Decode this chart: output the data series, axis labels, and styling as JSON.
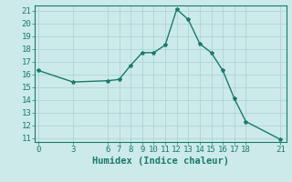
{
  "x": [
    0,
    3,
    6,
    7,
    8,
    9,
    10,
    11,
    12,
    13,
    14,
    15,
    16,
    17,
    18,
    21
  ],
  "y": [
    16.3,
    15.4,
    15.5,
    15.6,
    16.7,
    17.7,
    17.7,
    18.3,
    21.1,
    20.3,
    18.4,
    17.7,
    16.3,
    14.1,
    12.3,
    10.9
  ],
  "line_color": "#1a7a6a",
  "marker": "*",
  "marker_size": 3,
  "background_color": "#cceaea",
  "grid_color": "#aacfcf",
  "spine_color": "#1a7a6a",
  "xlabel": "Humidex (Indice chaleur)",
  "xticks": [
    0,
    3,
    6,
    7,
    8,
    9,
    10,
    11,
    12,
    13,
    14,
    15,
    16,
    17,
    18,
    21
  ],
  "yticks": [
    11,
    12,
    13,
    14,
    15,
    16,
    17,
    18,
    19,
    20,
    21
  ],
  "xlim": [
    -0.3,
    21.5
  ],
  "ylim": [
    10.7,
    21.4
  ],
  "font_color": "#1a7a6a",
  "tick_fontsize": 6.5,
  "label_fontsize": 7.5
}
